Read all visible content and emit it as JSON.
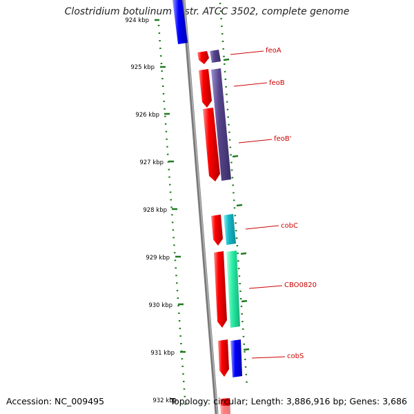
{
  "map": {
    "title": "Clostridium botulinum A str. ATCC 3502, complete genome",
    "accession": "Accession: NC_009495",
    "topology": "Topology: circular; Length: 3,886,916 bp; Genes: 3,686",
    "ticks": [
      {
        "label": "924 kbp"
      },
      {
        "label": "925 kbp"
      },
      {
        "label": "926 kbp"
      },
      {
        "label": "927 kbp"
      },
      {
        "label": "928 kbp"
      },
      {
        "label": "929 kbp"
      },
      {
        "label": "930 kbp"
      },
      {
        "label": "931 kbp"
      },
      {
        "label": "932 kbp"
      }
    ],
    "genes": [
      {
        "name": "feoA"
      },
      {
        "name": "feoB"
      },
      {
        "name": "feoB'"
      },
      {
        "name": "cobC"
      },
      {
        "name": "CBO0820"
      },
      {
        "name": "cobS"
      }
    ],
    "colors": {
      "forward": "#ff0000",
      "purple": "#55448a",
      "cyan": "#16b8c6",
      "green": "#2ef0a8",
      "blue": "#0000ff",
      "backbone": "#808080",
      "dots": "#1f7a1f",
      "label": "#cc0000"
    }
  }
}
